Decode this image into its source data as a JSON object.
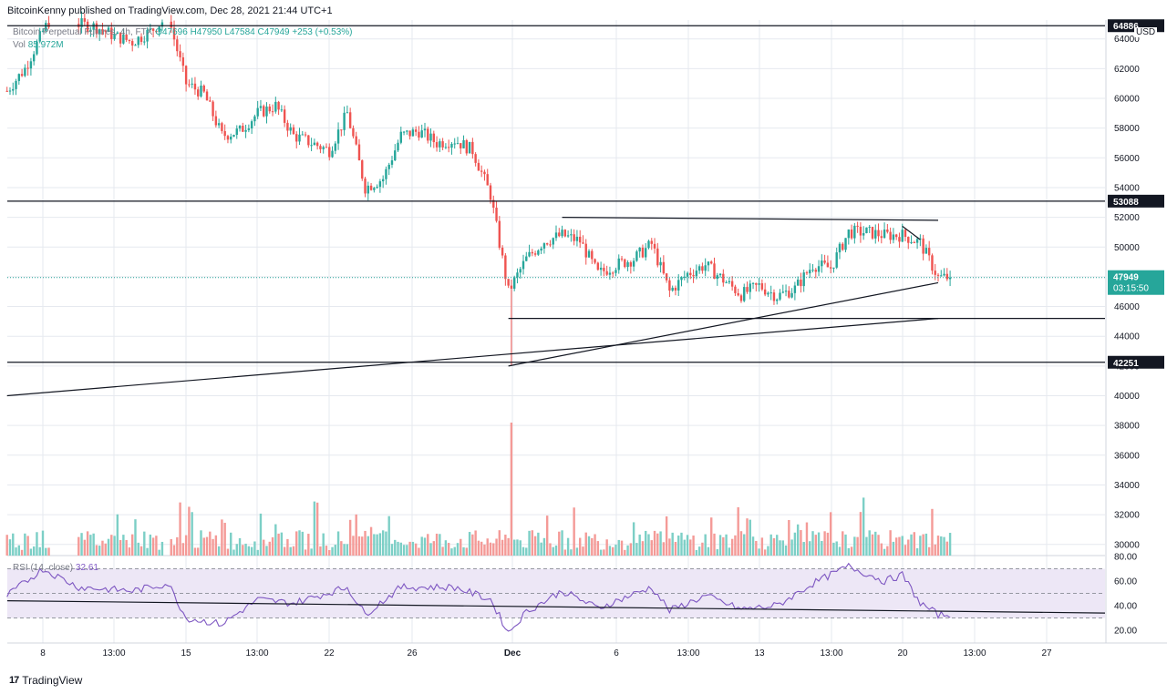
{
  "header": {
    "publisher": "BitcoinKenny published on TradingView.com, Dec 28, 2021 21:44 UTC+1"
  },
  "legend": {
    "symbol": "Bitcoin Perpetual Futures, 4h, FTX",
    "open": "O47696",
    "high": "H47950",
    "low": "L47584",
    "close": "C47949",
    "change": "+253 (+0.53%)",
    "vol_label": "Vol",
    "vol_value": "85.972M",
    "rsi_label": "RSI (14, close)",
    "rsi_value": "32.61"
  },
  "currency": "USD",
  "brand": {
    "icon": "tradingview-logo-icon",
    "name": "TradingView"
  },
  "colors": {
    "up": "#26a69a",
    "down": "#ef5350",
    "vol_up": "#7ccfc6",
    "vol_down": "#f49a97",
    "rsi": "#7e57c2",
    "rsi_band": "#ede7f6",
    "grid": "#e6e9ef",
    "last_price_dotted": "#26a69a"
  },
  "price_labels": {
    "top_level": "64886",
    "resistance": "53088",
    "support": "42251",
    "last_price": "47949",
    "countdown": "03:15:50"
  },
  "chart_data": {
    "type": "candlestick",
    "price_axis": {
      "ticks": [
        30000,
        32000,
        34000,
        36000,
        38000,
        40000,
        42000,
        44000,
        46000,
        48000,
        50000,
        52000,
        54000,
        56000,
        58000,
        60000,
        62000,
        64000
      ],
      "labels": [
        "30000",
        "32000",
        "34000",
        "36000",
        "38000",
        "40000",
        "42000",
        "44000",
        "46000",
        "48000",
        "50000",
        "52000",
        "54000",
        "56000",
        "58000",
        "60000",
        "62000",
        "64000"
      ]
    },
    "rsi_axis": {
      "ticks": [
        20,
        40,
        60,
        80
      ],
      "labels": [
        "20.00",
        "40.00",
        "60.00",
        "80.00"
      ],
      "bands": [
        30,
        50,
        70
      ]
    },
    "time_axis": {
      "labels": [
        "8",
        "13:00",
        "15",
        "13:00",
        "22",
        "26",
        "Dec",
        "6",
        "13:00",
        "13",
        "13:00",
        "20",
        "13:00",
        "27"
      ]
    },
    "horizontal_levels": [
      64886,
      53088,
      45200,
      42251
    ],
    "trendlines": [
      {
        "from": [
          "Nov 6",
          40000
        ],
        "to": [
          "Dec 28",
          45200
        ]
      },
      {
        "from": [
          "Dec 4",
          42000
        ],
        "to": [
          "Dec 28",
          47600
        ]
      },
      {
        "from": [
          "Dec 7",
          52000
        ],
        "to": [
          "Dec 28",
          51800
        ]
      },
      {
        "from": [
          "Dec 26",
          51400
        ],
        "to": [
          "Dec 27",
          50500
        ]
      }
    ],
    "rsi_trendline": {
      "from": 44,
      "to": 34
    },
    "price_keyframes": [
      [
        "Nov 6",
        60500
      ],
      [
        "Nov 7",
        62000
      ],
      [
        "Nov 8",
        64500
      ],
      [
        "Nov 9",
        66500
      ],
      [
        "Nov 10",
        65000
      ],
      [
        "Nov 11",
        64800
      ],
      [
        "Nov 12",
        64200
      ],
      [
        "Nov 13",
        63800
      ],
      [
        "Nov 14",
        64500
      ],
      [
        "Nov 15",
        65500
      ],
      [
        "Nov 16",
        61000
      ],
      [
        "Nov 17",
        60300
      ],
      [
        "Nov 18",
        57500
      ],
      [
        "Nov 19",
        57800
      ],
      [
        "Nov 20",
        59000
      ],
      [
        "Nov 21",
        59500
      ],
      [
        "Nov 22",
        57500
      ],
      [
        "Nov 23",
        57000
      ],
      [
        "Nov 24",
        56500
      ],
      [
        "Nov 25",
        59000
      ],
      [
        "Nov 26",
        54000
      ],
      [
        "Nov 27",
        54600
      ],
      [
        "Nov 28",
        57500
      ],
      [
        "Nov 29",
        57800
      ],
      [
        "Nov 30",
        57000
      ],
      [
        "Dec 1",
        57200
      ],
      [
        "Dec 2",
        56500
      ],
      [
        "Dec 3",
        53500
      ],
      [
        "Dec 4",
        47000
      ],
      [
        "Dec 5",
        49200
      ],
      [
        "Dec 6",
        50400
      ],
      [
        "Dec 7",
        50800
      ],
      [
        "Dec 8",
        50400
      ],
      [
        "Dec 9",
        48200
      ],
      [
        "Dec 10",
        48800
      ],
      [
        "Dec 11",
        49200
      ],
      [
        "Dec 12",
        50200
      ],
      [
        "Dec 13",
        47000
      ],
      [
        "Dec 14",
        48200
      ],
      [
        "Dec 15",
        48800
      ],
      [
        "Dec 16",
        47800
      ],
      [
        "Dec 17",
        46800
      ],
      [
        "Dec 18",
        47400
      ],
      [
        "Dec 19",
        46700
      ],
      [
        "Dec 20",
        47200
      ],
      [
        "Dec 21",
        48800
      ],
      [
        "Dec 22",
        48600
      ],
      [
        "Dec 23",
        51000
      ],
      [
        "Dec 24",
        51000
      ],
      [
        "Dec 25",
        50800
      ],
      [
        "Dec 26",
        50800
      ],
      [
        "Dec 27",
        50300
      ],
      [
        "Dec 28",
        47949
      ]
    ],
    "rsi_keyframes": [
      [
        "Nov 6",
        48
      ],
      [
        "Nov 8",
        70
      ],
      [
        "Nov 10",
        55
      ],
      [
        "Nov 13",
        52
      ],
      [
        "Nov 15",
        58
      ],
      [
        "Nov 16",
        30
      ],
      [
        "Nov 18",
        25
      ],
      [
        "Nov 20",
        45
      ],
      [
        "Nov 22",
        42
      ],
      [
        "Nov 25",
        55
      ],
      [
        "Nov 26",
        33
      ],
      [
        "Nov 28",
        55
      ],
      [
        "Dec 1",
        55
      ],
      [
        "Dec 3",
        45
      ],
      [
        "Dec 4",
        18
      ],
      [
        "Dec 5",
        35
      ],
      [
        "Dec 7",
        52
      ],
      [
        "Dec 9",
        38
      ],
      [
        "Dec 12",
        55
      ],
      [
        "Dec 13",
        36
      ],
      [
        "Dec 15",
        48
      ],
      [
        "Dec 17",
        37
      ],
      [
        "Dec 19",
        40
      ],
      [
        "Dec 21",
        58
      ],
      [
        "Dec 23",
        72
      ],
      [
        "Dec 25",
        60
      ],
      [
        "Dec 26",
        65
      ],
      [
        "Dec 27",
        42
      ],
      [
        "Dec 28",
        32.61
      ]
    ]
  }
}
